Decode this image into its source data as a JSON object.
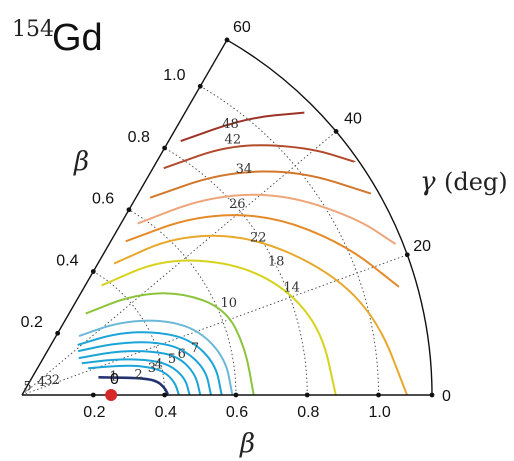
{
  "chart_data": {
    "type": "contour",
    "title": {
      "mass_number": "154",
      "element": "Gd"
    },
    "xlabel": "β",
    "ylabel": "β",
    "gamma_label": "γ",
    "gamma_unit": "(deg)",
    "beta_ticks": [
      "0.2",
      "0.4",
      "0.6",
      "0.8",
      "1.0"
    ],
    "axis_beta_ticks": [
      "0.2",
      "0.4",
      "0.6",
      "0.8",
      "1.0"
    ],
    "gamma_ticks": [
      "0",
      "20",
      "40",
      "60"
    ],
    "beta_range": [
      0,
      1.15
    ],
    "gamma_range_deg": [
      0,
      60
    ],
    "minimum_label": "0",
    "minimum_point": {
      "beta": 0.25,
      "gamma": 0,
      "color": "#d62828"
    },
    "contour_labels": [
      {
        "text": "1",
        "beta": 0.26,
        "gamma": 9
      },
      {
        "text": "2",
        "beta": 0.33,
        "gamma": 8
      },
      {
        "text": "3",
        "beta": 0.37,
        "gamma": 10
      },
      {
        "text": "4",
        "beta": 0.39,
        "gamma": 11
      },
      {
        "text": "5",
        "beta": 0.43,
        "gamma": 12
      },
      {
        "text": "6",
        "beta": 0.46,
        "gamma": 13
      },
      {
        "text": "7",
        "beta": 0.5,
        "gamma": 14
      },
      {
        "text": "2",
        "beta": 0.1,
        "gamma": 18
      },
      {
        "text": "3",
        "beta": 0.08,
        "gamma": 22
      },
      {
        "text": "4",
        "beta": 0.06,
        "gamma": 25
      },
      {
        "text": "5",
        "beta": 0.02,
        "gamma": 40
      },
      {
        "text": "10",
        "beta": 0.63,
        "gamma": 23
      },
      {
        "text": "14",
        "beta": 0.81,
        "gamma": 21
      },
      {
        "text": "18",
        "beta": 0.8,
        "gamma": 27
      },
      {
        "text": "22",
        "beta": 0.79,
        "gamma": 33
      },
      {
        "text": "26",
        "beta": 0.8,
        "gamma": 41
      },
      {
        "text": "34",
        "beta": 0.88,
        "gamma": 45
      },
      {
        "text": "42",
        "beta": 0.92,
        "gamma": 50
      },
      {
        "text": "48",
        "beta": 0.95,
        "gamma": 52
      }
    ],
    "contours": [
      {
        "level": 1,
        "color": "#23316e",
        "points": [
          [
            0.22,
            13
          ],
          [
            0.28,
            10
          ],
          [
            0.34,
            8
          ],
          [
            0.38,
            6
          ],
          [
            0.4,
            3
          ],
          [
            0.41,
            0
          ]
        ]
      },
      {
        "level": 2,
        "color": "#1aa4d8",
        "points": [
          [
            0.2,
            22
          ],
          [
            0.28,
            17
          ],
          [
            0.34,
            14
          ],
          [
            0.4,
            10
          ],
          [
            0.43,
            5
          ],
          [
            0.44,
            0
          ]
        ]
      },
      {
        "level": 3,
        "color": "#1aa4d8",
        "points": [
          [
            0.19,
            28
          ],
          [
            0.28,
            21
          ],
          [
            0.36,
            16
          ],
          [
            0.42,
            12
          ],
          [
            0.46,
            6
          ],
          [
            0.47,
            0
          ]
        ]
      },
      {
        "level": 4,
        "color": "#1aa4d8",
        "points": [
          [
            0.19,
            33
          ],
          [
            0.29,
            25
          ],
          [
            0.38,
            19
          ],
          [
            0.45,
            14
          ],
          [
            0.49,
            7
          ],
          [
            0.5,
            0
          ]
        ]
      },
      {
        "level": 5,
        "color": "#1aa4d8",
        "points": [
          [
            0.2,
            38
          ],
          [
            0.3,
            29
          ],
          [
            0.4,
            22
          ],
          [
            0.47,
            16
          ],
          [
            0.52,
            8
          ],
          [
            0.53,
            0
          ]
        ]
      },
      {
        "level": 6,
        "color": "#1aa4d8",
        "points": [
          [
            0.21,
            42
          ],
          [
            0.32,
            33
          ],
          [
            0.42,
            25
          ],
          [
            0.5,
            18
          ],
          [
            0.55,
            9
          ],
          [
            0.56,
            0
          ]
        ]
      },
      {
        "level": 7,
        "color": "#6cb8d8",
        "points": [
          [
            0.23,
            46
          ],
          [
            0.34,
            37
          ],
          [
            0.45,
            28
          ],
          [
            0.53,
            20
          ],
          [
            0.58,
            10
          ],
          [
            0.59,
            0
          ]
        ]
      },
      {
        "level": 10,
        "color": "#8cc43c",
        "points": [
          [
            0.29,
            52
          ],
          [
            0.42,
            42
          ],
          [
            0.53,
            33
          ],
          [
            0.62,
            23
          ],
          [
            0.64,
            12
          ],
          [
            0.65,
            0
          ]
        ]
      },
      {
        "level": 14,
        "color": "#d6d21e",
        "points": [
          [
            0.38,
            54
          ],
          [
            0.55,
            44
          ],
          [
            0.7,
            32
          ],
          [
            0.8,
            22
          ],
          [
            0.86,
            12
          ],
          [
            0.88,
            0
          ]
        ]
      },
      {
        "level": 18,
        "color": "#e8a82c",
        "points": [
          [
            0.45,
            55
          ],
          [
            0.62,
            46
          ],
          [
            0.78,
            35
          ],
          [
            0.93,
            22
          ],
          [
            1.02,
            12
          ],
          [
            1.08,
            0
          ]
        ]
      },
      {
        "level": 22,
        "color": "#e58a2a",
        "points": [
          [
            0.52,
            56
          ],
          [
            0.7,
            46
          ],
          [
            0.86,
            36
          ],
          [
            1.0,
            25
          ],
          [
            1.1,
            16
          ]
        ]
      },
      {
        "level": 26,
        "color": "#efa57a",
        "points": [
          [
            0.58,
            56
          ],
          [
            0.76,
            47
          ],
          [
            0.92,
            38
          ],
          [
            1.06,
            28
          ],
          [
            1.13,
            22
          ]
        ]
      },
      {
        "level": 34,
        "color": "#d2772a",
        "points": [
          [
            0.66,
            57
          ],
          [
            0.84,
            48
          ],
          [
            1.0,
            39
          ],
          [
            1.13,
            30
          ]
        ]
      },
      {
        "level": 42,
        "color": "#b24a2c",
        "points": [
          [
            0.75,
            58
          ],
          [
            0.92,
            50
          ],
          [
            1.06,
            41
          ],
          [
            1.14,
            35
          ]
        ]
      },
      {
        "level": 48,
        "color": "#9c3326",
        "points": [
          [
            0.84,
            58
          ],
          [
            1.0,
            51
          ],
          [
            1.12,
            45
          ]
        ]
      }
    ]
  }
}
